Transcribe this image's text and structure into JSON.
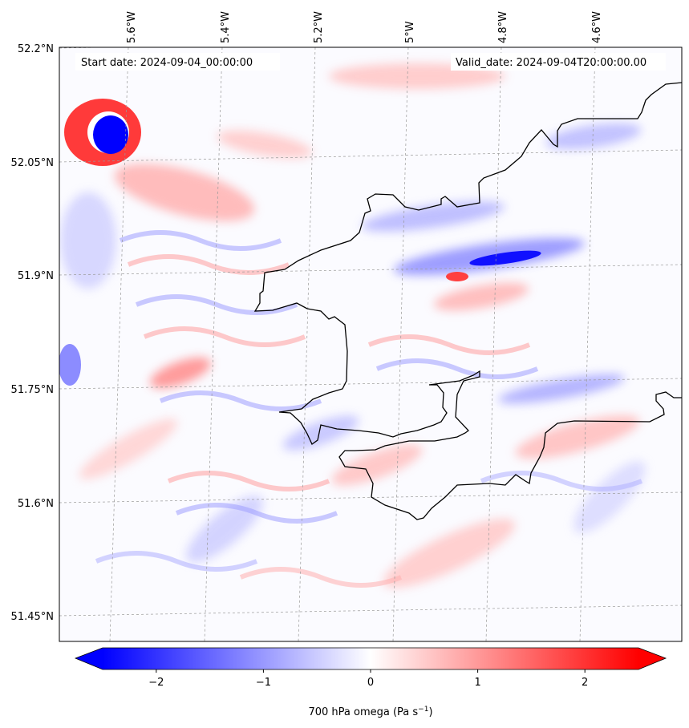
{
  "map": {
    "start_date": "Start date: 2024-09-04_00:00:00",
    "valid_date": "Valid_date: 2024-09-04T20:00:00.00",
    "lon_labels": [
      "5.6°W",
      "5.4°W",
      "5.2°W",
      "5°W",
      "4.8°W",
      "4.6°W"
    ],
    "lat_labels": [
      "52.2°N",
      "52.05°N",
      "51.9°N",
      "51.75°N",
      "51.6°N",
      "51.45°N"
    ]
  },
  "colorbar": {
    "label_main": "700 hPa omega (Pa s",
    "label_exp": "−1",
    "label_close": ")",
    "ticks": [
      "−2",
      "−1",
      "0",
      "1",
      "2"
    ],
    "ticks_values": [
      -2,
      -1,
      0,
      1,
      2
    ],
    "range": [
      -2.5,
      2.5
    ],
    "colors": {
      "low": "#0000ff",
      "mid": "#ffffff",
      "high": "#ff0000"
    },
    "extend": "both"
  }
}
